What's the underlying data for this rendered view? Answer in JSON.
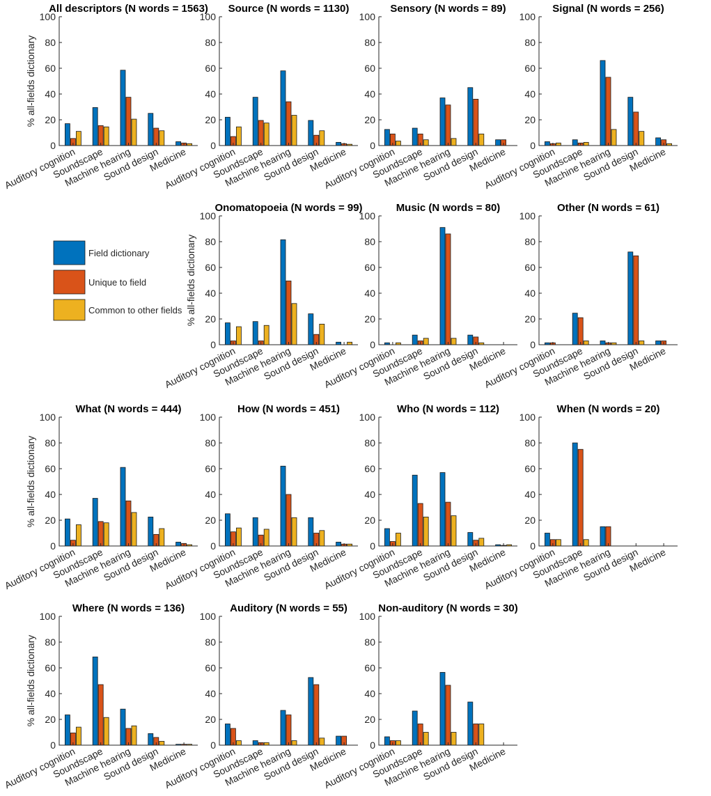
{
  "figure": {
    "ylabel": "% all-fields dictionary",
    "categories": [
      "Auditory cognition",
      "Soundscape",
      "Machine hearing",
      "Sound design",
      "Medicine"
    ],
    "ylim": [
      0,
      100
    ],
    "yticks": [
      0,
      20,
      40,
      60,
      80,
      100
    ]
  },
  "legend": {
    "items": [
      {
        "label": "Field dictionary",
        "color": "#0072BD"
      },
      {
        "label": "Unique to field",
        "color": "#D95319"
      },
      {
        "label": "Common to other fields",
        "color": "#EDB120"
      }
    ]
  },
  "chart_data": [
    {
      "type": "bar",
      "title": "All descriptors (N words = 1563)",
      "ylabel": "% all-fields dictionary",
      "series": [
        {
          "name": "Field dictionary",
          "values": [
            17,
            29.5,
            58.5,
            25,
            3
          ]
        },
        {
          "name": "Unique to field",
          "values": [
            5.5,
            15.5,
            37.5,
            13.5,
            2
          ]
        },
        {
          "name": "Common to other fields",
          "values": [
            11,
            14.5,
            20.5,
            11.5,
            1.5
          ]
        }
      ]
    },
    {
      "type": "bar",
      "title": "Source (N words = 1130)",
      "ylabel": "",
      "series": [
        {
          "name": "Field dictionary",
          "values": [
            22,
            37.5,
            58,
            19.5,
            2.5
          ]
        },
        {
          "name": "Unique to field",
          "values": [
            7,
            19.5,
            34,
            8,
            1.5
          ]
        },
        {
          "name": "Common to other fields",
          "values": [
            14.5,
            17.5,
            23.5,
            11.5,
            1
          ]
        }
      ]
    },
    {
      "type": "bar",
      "title": "Sensory (N words = 89)",
      "ylabel": "",
      "series": [
        {
          "name": "Field dictionary",
          "values": [
            12.5,
            13.5,
            37,
            45,
            4.5
          ]
        },
        {
          "name": "Unique to field",
          "values": [
            9,
            9,
            31.5,
            36,
            4.5
          ]
        },
        {
          "name": "Common to other fields",
          "values": [
            3.5,
            4.5,
            5.5,
            9,
            0
          ]
        }
      ]
    },
    {
      "type": "bar",
      "title": "Signal (N words = 256)",
      "ylabel": "",
      "series": [
        {
          "name": "Field dictionary",
          "values": [
            3,
            4.5,
            66,
            37.5,
            6
          ]
        },
        {
          "name": "Unique to field",
          "values": [
            1.5,
            2,
            53,
            26,
            4.5
          ]
        },
        {
          "name": "Common to other fields",
          "values": [
            2,
            2.5,
            12.5,
            11,
            1.5
          ]
        }
      ]
    },
    {
      "type": "bar",
      "title": "Onomatopoeia (N words = 99)",
      "ylabel": "% all-fields dictionary",
      "series": [
        {
          "name": "Field dictionary",
          "values": [
            17,
            18,
            81.5,
            24,
            2
          ]
        },
        {
          "name": "Unique to field",
          "values": [
            3,
            3,
            49.5,
            8,
            0
          ]
        },
        {
          "name": "Common to other fields",
          "values": [
            14,
            15,
            32,
            16,
            2
          ]
        }
      ]
    },
    {
      "type": "bar",
      "title": "Music (N words = 80)",
      "ylabel": "",
      "series": [
        {
          "name": "Field dictionary",
          "values": [
            1.5,
            7.5,
            91,
            7.5,
            0
          ]
        },
        {
          "name": "Unique to field",
          "values": [
            0,
            3,
            86,
            6,
            0
          ]
        },
        {
          "name": "Common to other fields",
          "values": [
            1.5,
            5,
            5,
            1.5,
            0
          ]
        }
      ]
    },
    {
      "type": "bar",
      "title": "Other (N words = 61)",
      "ylabel": "",
      "series": [
        {
          "name": "Field dictionary",
          "values": [
            1.5,
            24.5,
            3,
            72,
            3
          ]
        },
        {
          "name": "Unique to field",
          "values": [
            1.5,
            21,
            1.5,
            69,
            3
          ]
        },
        {
          "name": "Common to other fields",
          "values": [
            0,
            3,
            1.5,
            3,
            0
          ]
        }
      ]
    },
    {
      "type": "bar",
      "title": "What (N words = 444)",
      "ylabel": "% all-fields dictionary",
      "series": [
        {
          "name": "Field dictionary",
          "values": [
            21,
            37,
            61,
            22.5,
            3
          ]
        },
        {
          "name": "Unique to field",
          "values": [
            4.5,
            19,
            35,
            9,
            2
          ]
        },
        {
          "name": "Common to other fields",
          "values": [
            16.5,
            18,
            26,
            13.5,
            1
          ]
        }
      ]
    },
    {
      "type": "bar",
      "title": "How (N words = 451)",
      "ylabel": "",
      "series": [
        {
          "name": "Field dictionary",
          "values": [
            25,
            22,
            62,
            22,
            3
          ]
        },
        {
          "name": "Unique to field",
          "values": [
            11,
            8.5,
            40,
            10,
            1.5
          ]
        },
        {
          "name": "Common to other fields",
          "values": [
            14,
            13,
            22,
            12,
            1.5
          ]
        }
      ]
    },
    {
      "type": "bar",
      "title": "Who (N words = 112)",
      "ylabel": "",
      "series": [
        {
          "name": "Field dictionary",
          "values": [
            13.5,
            55,
            57,
            10.5,
            1
          ]
        },
        {
          "name": "Unique to field",
          "values": [
            3.5,
            33,
            34,
            4.5,
            0.5
          ]
        },
        {
          "name": "Common to other fields",
          "values": [
            10,
            22.5,
            23.5,
            6,
            1
          ]
        }
      ]
    },
    {
      "type": "bar",
      "title": "When (N words = 20)",
      "ylabel": "",
      "series": [
        {
          "name": "Field dictionary",
          "values": [
            10,
            80,
            15,
            0,
            0
          ]
        },
        {
          "name": "Unique to field",
          "values": [
            5,
            75,
            15,
            0,
            0
          ]
        },
        {
          "name": "Common to other fields",
          "values": [
            5,
            5,
            0,
            0,
            0
          ]
        }
      ]
    },
    {
      "type": "bar",
      "title": "Where (N words = 136)",
      "ylabel": "% all-fields dictionary",
      "series": [
        {
          "name": "Field dictionary",
          "values": [
            23.5,
            68.5,
            28,
            9,
            0.7
          ]
        },
        {
          "name": "Unique to field",
          "values": [
            9.5,
            47,
            13,
            6,
            0.7
          ]
        },
        {
          "name": "Common to other fields",
          "values": [
            14,
            21.5,
            15,
            3,
            0.7
          ]
        }
      ]
    },
    {
      "type": "bar",
      "title": "Auditory (N words = 55)",
      "ylabel": "",
      "series": [
        {
          "name": "Field dictionary",
          "values": [
            16.5,
            3.5,
            27,
            52.5,
            7
          ]
        },
        {
          "name": "Unique to field",
          "values": [
            13,
            2,
            23.5,
            47,
            7
          ]
        },
        {
          "name": "Common to other fields",
          "values": [
            3.5,
            2,
            3.5,
            5.5,
            0
          ]
        }
      ]
    },
    {
      "type": "bar",
      "title": "Non-auditory (N words = 30)",
      "ylabel": "",
      "series": [
        {
          "name": "Field dictionary",
          "values": [
            6.5,
            26.5,
            56.5,
            33.5,
            0
          ]
        },
        {
          "name": "Unique to field",
          "values": [
            3.5,
            16.5,
            46.5,
            16.5,
            0
          ]
        },
        {
          "name": "Common to other fields",
          "values": [
            3.5,
            10,
            10,
            16.5,
            0
          ]
        }
      ]
    }
  ]
}
